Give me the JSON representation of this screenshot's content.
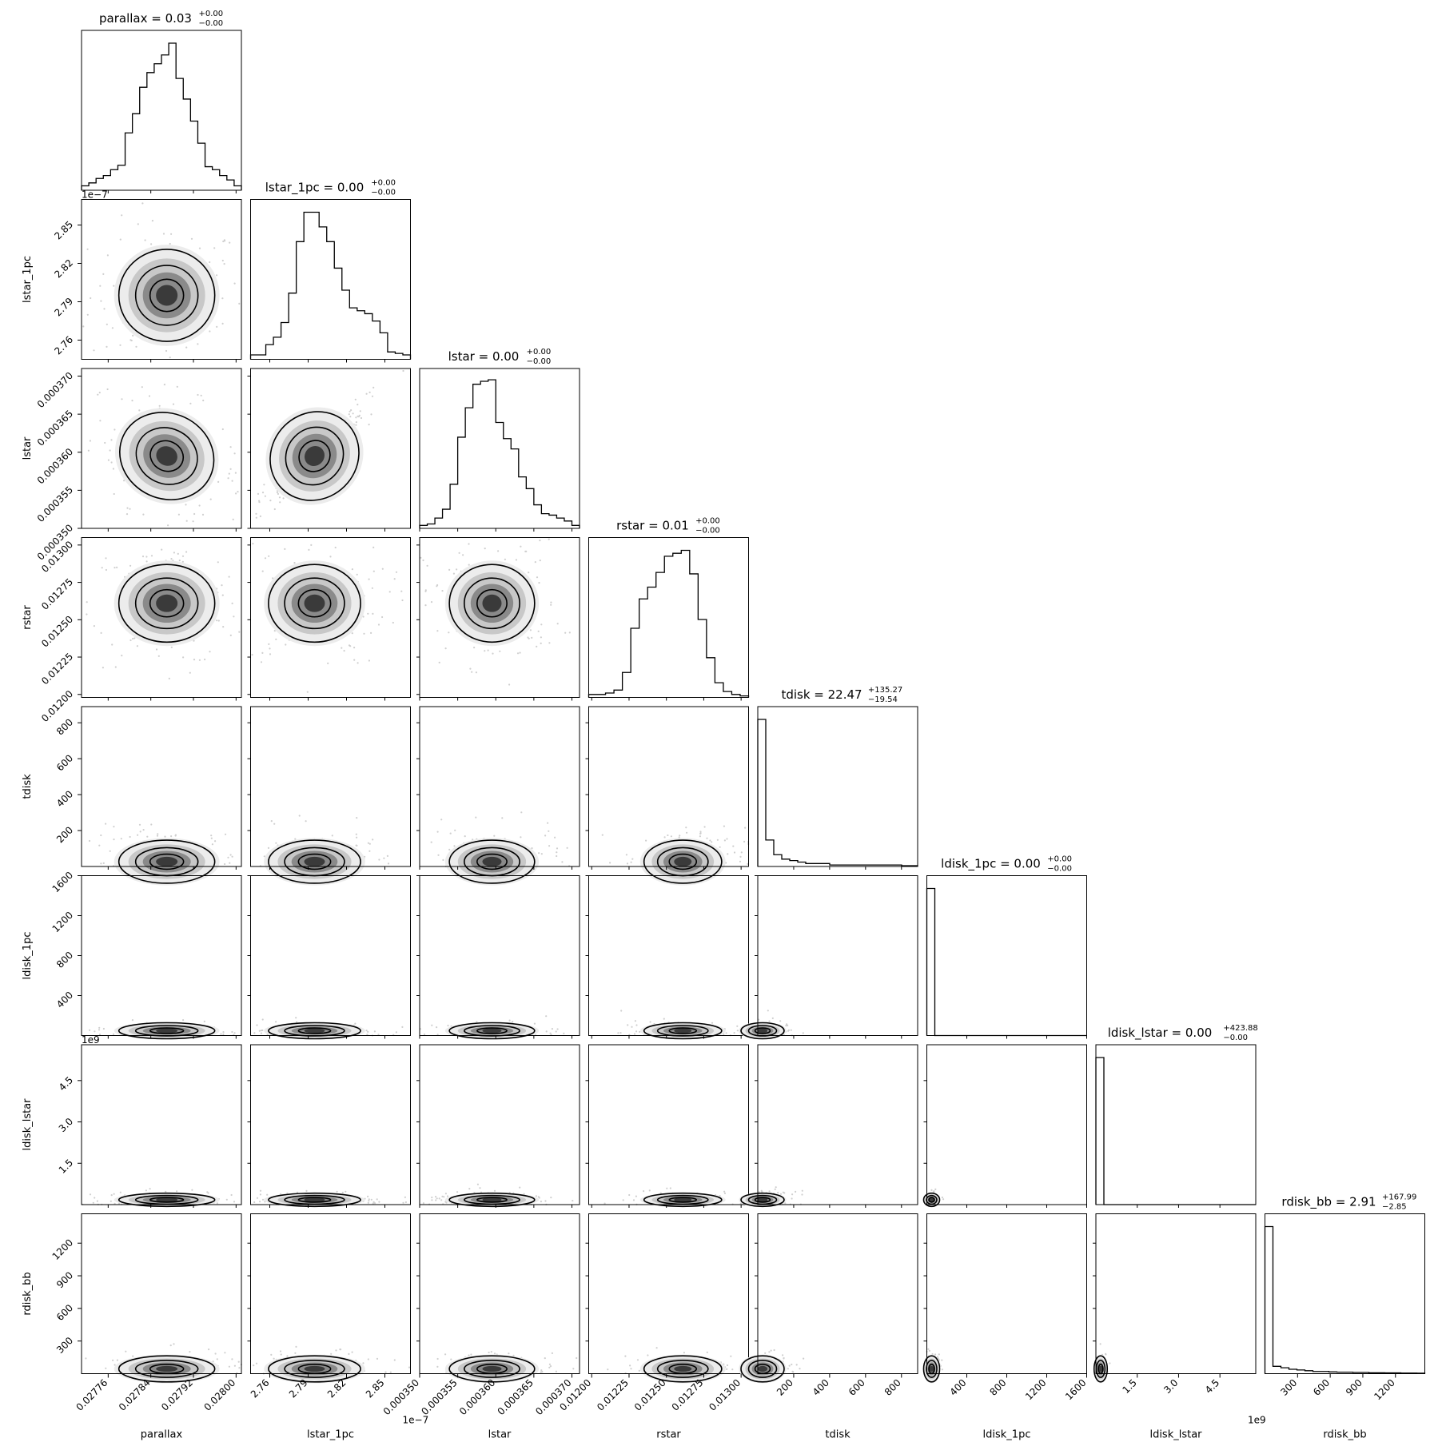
{
  "chart_data": {
    "type": "corner",
    "parameters": [
      {
        "key": "parallax",
        "label": "parallax",
        "title": {
          "name": "parallax",
          "median": "0.03",
          "upper": "+0.00",
          "lower": "−0.00"
        },
        "range": [
          0.02771,
          0.02801
        ],
        "ticks": [
          0.02776,
          0.02784,
          0.02792,
          0.028
        ],
        "tick_labels": [
          "0.02776",
          "0.02784",
          "0.02792",
          "0.02800"
        ],
        "offset": "",
        "center": 0.02787,
        "sd": 4.5e-05
      },
      {
        "key": "lstar_1pc",
        "label": "lstar_1pc",
        "title": {
          "name": "lstar_1pc",
          "median": "0.00",
          "upper": "+0.00",
          "lower": "−0.00"
        },
        "range": [
          2.745,
          2.87
        ],
        "ticks": [
          2.76,
          2.79,
          2.82,
          2.85
        ],
        "tick_labels": [
          "2.76",
          "2.79",
          "2.82",
          "2.85"
        ],
        "offset": "1e−7",
        "center": 2.795,
        "sd": 0.018
      },
      {
        "key": "lstar",
        "label": "lstar",
        "title": {
          "name": "lstar",
          "median": "0.00",
          "upper": "+0.00",
          "lower": "−0.00"
        },
        "range": [
          0.00035,
          0.000371
        ],
        "ticks": [
          0.00035,
          0.000355,
          0.00036,
          0.000365,
          0.00037
        ],
        "tick_labels": [
          "0.000350",
          "0.000355",
          "0.000360",
          "0.000365",
          "0.000370"
        ],
        "offset": "",
        "center": 0.0003595,
        "sd": 2.8e-06
      },
      {
        "key": "rstar",
        "label": "rstar",
        "title": {
          "name": "rstar",
          "median": "0.01",
          "upper": "+0.00",
          "lower": "−0.00"
        },
        "range": [
          0.01198,
          0.01305
        ],
        "ticks": [
          0.012,
          0.01225,
          0.0125,
          0.01275,
          0.013
        ],
        "tick_labels": [
          "0.01200",
          "0.01225",
          "0.01250",
          "0.01275",
          "0.01300"
        ],
        "offset": "",
        "center": 0.01261,
        "sd": 0.00013
      },
      {
        "key": "tdisk",
        "label": "tdisk",
        "title": {
          "name": "tdisk",
          "median": "22.47",
          "upper": "+135.27",
          "lower": "−19.54"
        },
        "range": [
          0,
          890
        ],
        "ticks": [
          200,
          400,
          600,
          800
        ],
        "tick_labels": [
          "200",
          "400",
          "600",
          "800"
        ],
        "offset": "",
        "center": 22,
        "sd": 60
      },
      {
        "key": "ldisk_1pc",
        "label": "ldisk_1pc",
        "title": {
          "name": "ldisk_1pc",
          "median": "0.00",
          "upper": "+0.00",
          "lower": "−0.00"
        },
        "range": [
          0,
          1600
        ],
        "ticks": [
          400,
          800,
          1200,
          1600
        ],
        "tick_labels": [
          "400",
          "800",
          "1200",
          "1600"
        ],
        "offset": "",
        "center": 20,
        "sd": 40
      },
      {
        "key": "ldisk_lstar",
        "label": "ldisk_lstar",
        "title": {
          "name": "ldisk_lstar",
          "median": "0.00",
          "upper": "+423.88",
          "lower": "−0.00"
        },
        "range": [
          0,
          5.8
        ],
        "ticks": [
          1.5,
          3.0,
          4.5
        ],
        "tick_labels": [
          "1.5",
          "3.0",
          "4.5"
        ],
        "offset": "1e9",
        "center": 0.1,
        "sd": 0.12
      },
      {
        "key": "rdisk_bb",
        "label": "rdisk_bb",
        "title": {
          "name": "rdisk_bb",
          "median": "2.91",
          "upper": "+167.99",
          "lower": "−2.85"
        },
        "range": [
          0,
          1470
        ],
        "ticks": [
          300,
          600,
          900,
          1200
        ],
        "tick_labels": [
          "300",
          "600",
          "900",
          "1200"
        ],
        "offset": "",
        "center": 10,
        "sd": 60
      }
    ],
    "diagonal_histograms": [
      [
        0.03,
        0.05,
        0.08,
        0.1,
        0.14,
        0.17,
        0.39,
        0.52,
        0.7,
        0.8,
        0.86,
        0.92,
        1.0,
        0.76,
        0.62,
        0.47,
        0.32,
        0.16,
        0.14,
        0.1,
        0.07,
        0.03
      ],
      [
        0.03,
        0.03,
        0.1,
        0.15,
        0.25,
        0.45,
        0.8,
        1.0,
        1.0,
        0.9,
        0.8,
        0.62,
        0.47,
        0.35,
        0.33,
        0.31,
        0.26,
        0.18,
        0.05,
        0.04,
        0.03
      ],
      [
        0.02,
        0.03,
        0.07,
        0.13,
        0.3,
        0.62,
        0.82,
        0.98,
        1.0,
        1.01,
        0.72,
        0.61,
        0.54,
        0.35,
        0.27,
        0.16,
        0.1,
        0.09,
        0.07,
        0.05,
        0.02
      ],
      [
        0.02,
        0.02,
        0.03,
        0.05,
        0.17,
        0.47,
        0.67,
        0.75,
        0.85,
        0.96,
        0.98,
        1.0,
        0.84,
        0.53,
        0.27,
        0.1,
        0.04,
        0.02,
        0.01
      ],
      [
        1.0,
        0.18,
        0.08,
        0.05,
        0.04,
        0.03,
        0.02,
        0.02,
        0.02,
        0.01,
        0.01,
        0.01,
        0.01,
        0.01,
        0.01,
        0.01,
        0.01,
        0.01,
        0.005,
        0.005
      ],
      [
        1.0,
        0.0,
        0.0,
        0.0,
        0.0,
        0.0,
        0.0,
        0.0,
        0.0,
        0.0,
        0.0,
        0.0,
        0.0,
        0.0,
        0.0,
        0.0,
        0.0,
        0.0,
        0.0,
        0.0
      ],
      [
        1.0,
        0.0,
        0.0,
        0.0,
        0.0,
        0.0,
        0.0,
        0.0,
        0.0,
        0.0,
        0.0,
        0.0,
        0.0,
        0.0,
        0.0,
        0.0,
        0.0,
        0.0,
        0.0,
        0.0
      ],
      [
        1.0,
        0.05,
        0.04,
        0.03,
        0.025,
        0.02,
        0.015,
        0.015,
        0.012,
        0.01,
        0.01,
        0.008,
        0.008,
        0.006,
        0.006,
        0.005,
        0.005,
        0.004,
        0.004,
        0.003
      ]
    ],
    "grid": false,
    "legend": "none"
  }
}
